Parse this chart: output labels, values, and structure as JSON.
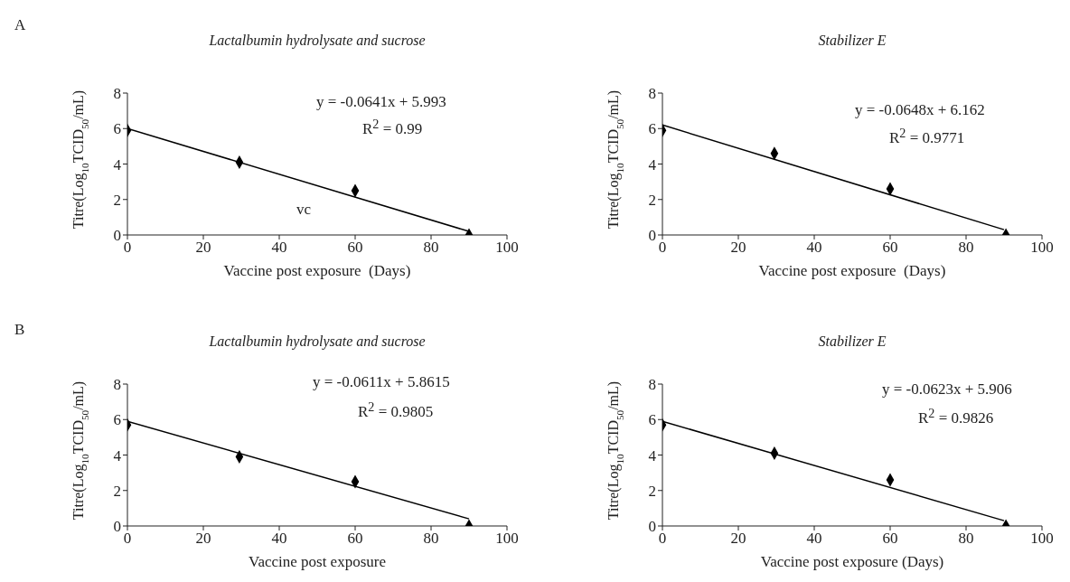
{
  "chart_data": [
    {
      "type": "scatter",
      "title": "Lactalbumin hydrolysate and sucrose",
      "xlabel": "Vaccine post exposure  (Days)",
      "ylabel": "Titre(Log$_{10}$TCID$_{50}$/mL)",
      "xlim": [
        0,
        100
      ],
      "xticks": [
        0,
        20,
        40,
        60,
        80,
        100
      ],
      "ylim": [
        0,
        8
      ],
      "yticks": [
        0,
        2,
        4,
        6,
        8
      ],
      "marker": "diamond",
      "annotations": [
        "A",
        "y = -0.0641x + 5.993",
        "R$^{2}$ = 0.99",
        "vc"
      ],
      "series": [
        {
          "color": "#000000",
          "x": [
            0,
            29.5,
            60,
            90
          ],
          "values": [
            5.9,
            4.1,
            2.5,
            0
          ]
        },
        {
          "type": "line",
          "marker": "none",
          "color": "#000000",
          "x": [
            0,
            90
          ],
          "values": [
            6.0,
            0.2
          ]
        }
      ]
    },
    {
      "type": "scatter",
      "title": "Stabilizer E",
      "xlabel": "Vaccine post exposure  (Days)",
      "ylabel": "Titre(Log$_{10}$TCID$_{50}$/mL)",
      "xlim": [
        0,
        100
      ],
      "xticks": [
        0,
        20,
        40,
        60,
        80,
        100
      ],
      "ylim": [
        0,
        8
      ],
      "yticks": [
        0,
        2,
        4,
        6,
        8
      ],
      "marker": "diamond",
      "annotations": [
        "y = -0.0648x + 6.162",
        "R$^{2}$ = 0.9771"
      ],
      "series": [
        {
          "color": "#000000",
          "x": [
            0,
            29.5,
            60,
            90.5
          ],
          "values": [
            5.9,
            4.6,
            2.6,
            0
          ]
        },
        {
          "type": "line",
          "marker": "none",
          "color": "#000000",
          "x": [
            0,
            90
          ],
          "values": [
            6.2,
            0.3
          ]
        }
      ]
    },
    {
      "type": "scatter",
      "title": "Lactalbumin hydrolysate and sucrose",
      "xlabel": "Vaccine post exposure",
      "ylabel": "Titre(Log$_{10}$TCID$_{50}$/mL)",
      "xlim": [
        0,
        100
      ],
      "xticks": [
        0,
        20,
        40,
        60,
        80,
        100
      ],
      "ylim": [
        0,
        8
      ],
      "yticks": [
        0,
        2,
        4,
        6,
        8
      ],
      "marker": "diamond",
      "annotations": [
        "B",
        "y = -0.0611x + 5.8615",
        "R$^{2}$ = 0.9805"
      ],
      "series": [
        {
          "color": "#000000",
          "x": [
            0,
            29.5,
            60,
            90
          ],
          "values": [
            5.7,
            3.9,
            2.5,
            0
          ]
        },
        {
          "type": "line",
          "marker": "none",
          "color": "#000000",
          "x": [
            0,
            90
          ],
          "values": [
            5.9,
            0.4
          ]
        }
      ]
    },
    {
      "type": "scatter",
      "title": "Stabilizer E",
      "xlabel": "Vaccine post exposure (Days)",
      "ylabel": "Titre(Log$_{10}$TCID$_{50}$/mL)",
      "xlim": [
        0,
        100
      ],
      "xticks": [
        0,
        20,
        40,
        60,
        80,
        100
      ],
      "ylim": [
        0,
        8
      ],
      "yticks": [
        0,
        2,
        4,
        6,
        8
      ],
      "marker": "diamond",
      "annotations": [
        "y = -0.0623x + 5.906",
        "R$^{2}$ = 0.9826"
      ],
      "series": [
        {
          "color": "#000000",
          "x": [
            0,
            29.5,
            60,
            90.5
          ],
          "values": [
            5.7,
            4.1,
            2.6,
            0
          ]
        },
        {
          "type": "line",
          "marker": "none",
          "color": "#000000",
          "x": [
            0,
            90
          ],
          "values": [
            5.9,
            0.3
          ]
        }
      ]
    }
  ]
}
